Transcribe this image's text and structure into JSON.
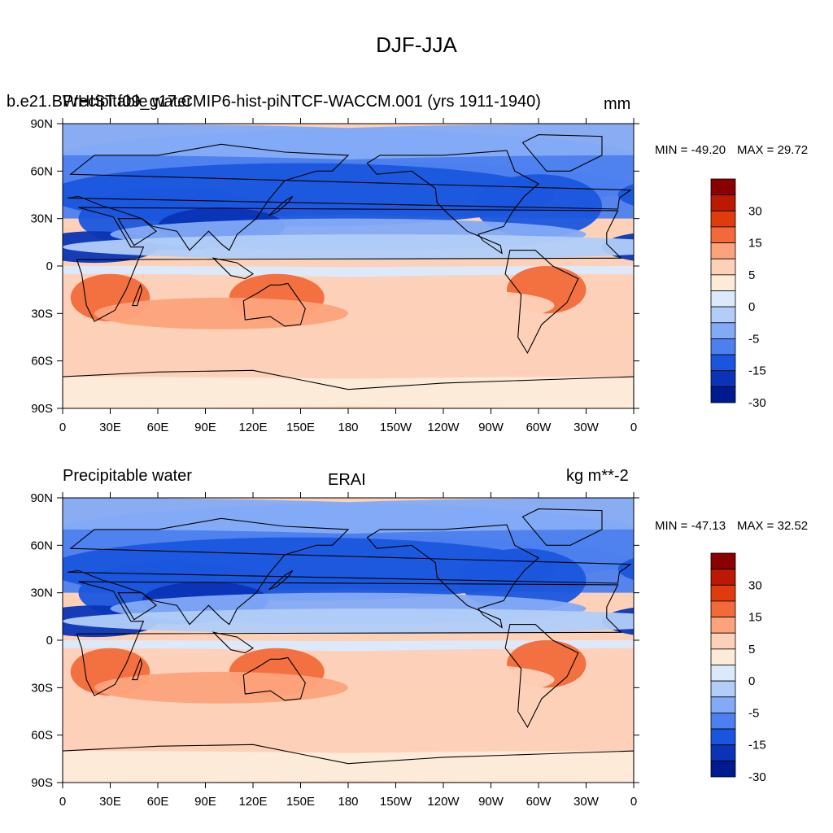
{
  "figure": {
    "title": "DJF-JJA"
  },
  "chart_data": [
    {
      "type": "heatmap",
      "left_title": "Precipitable water",
      "center_title": "b.e21.BWHIST.f09_g17.CMIP6-hist-piNTCF-WACCM.001 (yrs 1911-1940)",
      "units": "mm",
      "min_label": "MIN = -49.20",
      "max_label": "MAX =  29.72",
      "x_ticks": [
        "0",
        "30E",
        "60E",
        "90E",
        "120E",
        "150E",
        "180",
        "150W",
        "120W",
        "90W",
        "60W",
        "30W",
        "0"
      ],
      "y_ticks": [
        "90N",
        "60N",
        "30N",
        "0",
        "30S",
        "60S",
        "90S"
      ],
      "colorbar_labels": [
        "30",
        "15",
        "5",
        "0",
        "-5",
        "-15",
        "-30"
      ],
      "colors": [
        "#8b0000",
        "#bb1a00",
        "#e03b0b",
        "#f26a3a",
        "#fca37c",
        "#fdd1b8",
        "#fdebd9",
        "#dbe9fb",
        "#b1cdf8",
        "#83aaf5",
        "#4c80ee",
        "#1a56dd",
        "#0a34b5",
        "#001a90"
      ]
    },
    {
      "type": "heatmap",
      "left_title": "Precipitable water",
      "center_title": "ERAI",
      "units": "kg m**-2",
      "min_label": "MIN = -47.13",
      "max_label": "MAX =  32.52",
      "x_ticks": [
        "0",
        "30E",
        "60E",
        "90E",
        "120E",
        "150E",
        "180",
        "150W",
        "120W",
        "90W",
        "60W",
        "30W",
        "0"
      ],
      "y_ticks": [
        "90N",
        "60N",
        "30N",
        "0",
        "30S",
        "60S",
        "90S"
      ],
      "colorbar_labels": [
        "30",
        "15",
        "5",
        "0",
        "-5",
        "-15",
        "-30"
      ],
      "colors": [
        "#8b0000",
        "#bb1a00",
        "#e03b0b",
        "#f26a3a",
        "#fca37c",
        "#fdd1b8",
        "#fdebd9",
        "#dbe9fb",
        "#b1cdf8",
        "#83aaf5",
        "#4c80ee",
        "#1a56dd",
        "#0a34b5",
        "#001a90"
      ]
    }
  ]
}
